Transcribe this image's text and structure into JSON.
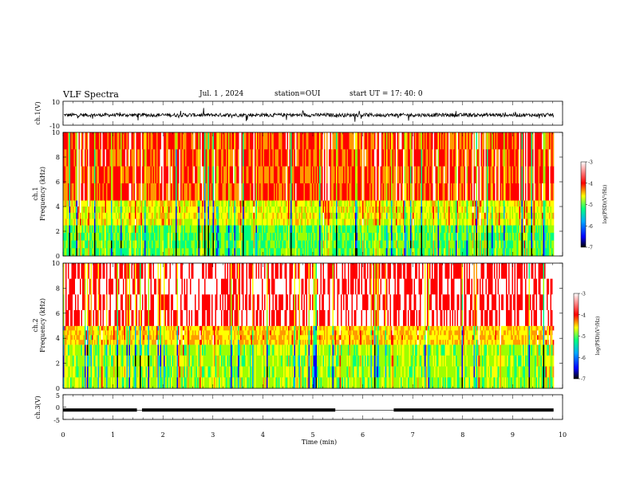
{
  "header": {
    "title": "VLF Spectra",
    "date": "Jul. 1 , 2024",
    "station": "station=OUI",
    "start": "start UT = 17: 40: 0"
  },
  "colors": {
    "scale": [
      "#000000",
      "#0000ff",
      "#00a8ff",
      "#00ff7f",
      "#9dff00",
      "#ffff00",
      "#ff9a00",
      "#ff0000",
      "#ffffff"
    ],
    "trace": "#000000",
    "axis": "#000000"
  },
  "chart_data": [
    {
      "type": "line",
      "name": "ch1-waveform",
      "ylabel": "ch.1(V)",
      "ylim": [
        -10,
        10
      ],
      "ytick_labels": [
        "10",
        "-10"
      ],
      "xlim": [
        0,
        10
      ],
      "note_level_V": -1.5
    },
    {
      "type": "heatmap",
      "name": "ch1-spectrogram",
      "ylabel_top": "ch.1",
      "ylabel": "Frequency (kHz)",
      "ylim": [
        0,
        10
      ],
      "ytick_labels": [
        "0",
        "2",
        "4",
        "6",
        "8",
        "10"
      ],
      "xlim": [
        0,
        10
      ],
      "data_end_min": 9.82,
      "colorbar": {
        "label": "log(PSD)(V²/Hz)",
        "range": [
          -7,
          -3
        ],
        "tick_labels": [
          "-3",
          "-4",
          "-5",
          "-6",
          "-7"
        ]
      },
      "bands_kHz": [
        {
          "from": 0,
          "to": 2.5,
          "level": -5.3
        },
        {
          "from": 2.5,
          "to": 4.5,
          "level": -4.6
        },
        {
          "from": 4.5,
          "to": 10,
          "level": -3.7
        }
      ]
    },
    {
      "type": "heatmap",
      "name": "ch2-spectrogram",
      "ylabel_top": "ch.2",
      "ylabel": "Frequency (kHz)",
      "ylim": [
        0,
        10
      ],
      "ytick_labels": [
        "0",
        "2",
        "4",
        "6",
        "8",
        "10"
      ],
      "xlim": [
        0,
        10
      ],
      "data_end_min": 9.82,
      "colorbar": {
        "label": "log(PSD)(V²/Hz)",
        "range": [
          -7,
          -3
        ],
        "tick_labels": [
          "-3",
          "-4",
          "-5",
          "-6",
          "-7"
        ]
      },
      "bands_kHz": [
        {
          "from": 0,
          "to": 3.5,
          "level": -5.0
        },
        {
          "from": 3.5,
          "to": 5.0,
          "level": -4.3
        },
        {
          "from": 5.0,
          "to": 10,
          "level": -3.3
        }
      ]
    },
    {
      "type": "line",
      "name": "ch3-signal",
      "ylabel": "ch.3(V)",
      "ylim": [
        -5,
        5
      ],
      "ytick_labels": [
        "5",
        "0",
        "-5"
      ],
      "xlim": [
        0,
        10
      ],
      "xlabel": "Time (min)",
      "xtick_labels": [
        "0",
        "1",
        "2",
        "3",
        "4",
        "5",
        "6",
        "7",
        "8",
        "9",
        "10"
      ],
      "level_V": -1.2,
      "gaps_min": [
        [
          1.48,
          1.58
        ],
        [
          5.45,
          6.62
        ]
      ],
      "data_end_min": 9.82
    }
  ]
}
